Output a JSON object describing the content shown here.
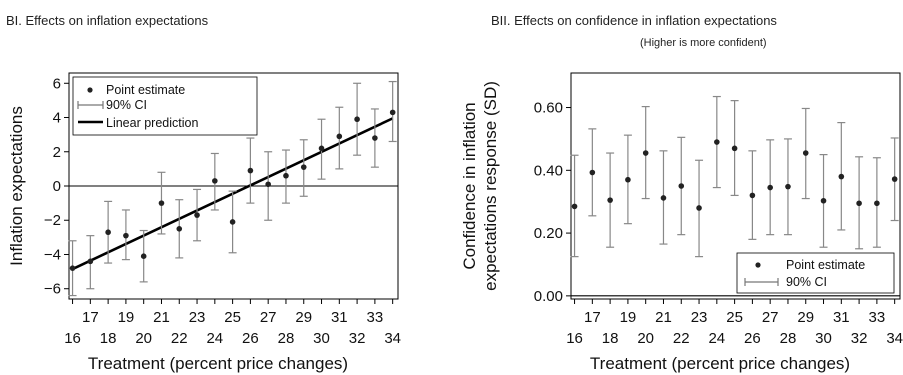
{
  "chart_data": [
    {
      "type": "scatter",
      "title": "BI. Effects on inflation expectations",
      "subtitle": "",
      "xlabel": "Treatment (percent price changes)",
      "ylabel": "Inflation expectations",
      "x": [
        16,
        17,
        18,
        19,
        20,
        21,
        22,
        23,
        24,
        25,
        26,
        27,
        28,
        29,
        30,
        31,
        32,
        33,
        34
      ],
      "xticks_bottom": [
        "16",
        "18",
        "20",
        "22",
        "24",
        "26",
        "28",
        "30",
        "32",
        "34"
      ],
      "xticks_top": [
        "17",
        "19",
        "21",
        "23",
        "25",
        "27",
        "29",
        "31",
        "33"
      ],
      "yticks": [
        6,
        4,
        2,
        0,
        -2,
        -4,
        -6
      ],
      "ytick_labels": [
        "6",
        "4",
        "2",
        "0",
        "−2",
        "−4",
        "−6"
      ],
      "ylim": [
        -6.6,
        6.6
      ],
      "xlim": [
        15.8,
        34.3
      ],
      "reference_line_y": 0,
      "series": [
        {
          "name": "Point estimate",
          "values": [
            -4.8,
            -4.4,
            -2.7,
            -2.9,
            -4.1,
            -1.0,
            -2.5,
            -1.7,
            0.3,
            -2.1,
            0.9,
            0.1,
            0.6,
            1.1,
            2.2,
            2.9,
            3.9,
            2.8,
            4.3
          ],
          "ci_low": [
            -6.4,
            -6.0,
            -4.5,
            -4.3,
            -5.6,
            -2.8,
            -4.2,
            -3.2,
            -1.4,
            -3.9,
            -1.0,
            -2.0,
            -1.0,
            -0.6,
            0.4,
            1.0,
            1.8,
            1.1,
            2.6
          ],
          "ci_high": [
            -3.2,
            -2.9,
            -0.9,
            -1.4,
            -2.6,
            0.8,
            -0.8,
            -0.2,
            1.9,
            -0.3,
            2.8,
            2.0,
            2.1,
            2.7,
            3.9,
            4.6,
            6.0,
            4.5,
            6.1
          ]
        }
      ],
      "linear_prediction": {
        "name": "Linear prediction",
        "x": [
          16,
          34
        ],
        "y": [
          -4.85,
          3.95
        ]
      },
      "legend": [
        "Point estimate",
        "90% CI",
        "Linear prediction"
      ],
      "legend_position": "top-left",
      "grid": false
    },
    {
      "type": "scatter",
      "title": "BII. Effects on confidence in inflation expectations",
      "subtitle": "(Higher is more confident)",
      "xlabel": "Treatment (percent price changes)",
      "ylabel_line1": "Confidence in inflation",
      "ylabel_line2": "expectations response (SD)",
      "x": [
        16,
        17,
        18,
        19,
        20,
        21,
        22,
        23,
        24,
        25,
        26,
        27,
        28,
        29,
        30,
        31,
        32,
        33,
        34
      ],
      "xticks_bottom": [
        "16",
        "18",
        "20",
        "22",
        "24",
        "26",
        "28",
        "30",
        "32",
        "34"
      ],
      "xticks_top": [
        "17",
        "19",
        "21",
        "23",
        "25",
        "27",
        "29",
        "31",
        "33"
      ],
      "yticks": [
        0.6,
        0.4,
        0.2,
        0.0
      ],
      "ytick_labels": [
        "0.60",
        "0.40",
        "0.20",
        "0.00"
      ],
      "ylim": [
        -0.01,
        0.71
      ],
      "xlim": [
        15.8,
        34.3
      ],
      "reference_line_y": 0,
      "series": [
        {
          "name": "Point estimate",
          "values": [
            0.285,
            0.393,
            0.305,
            0.37,
            0.455,
            0.312,
            0.35,
            0.28,
            0.49,
            0.47,
            0.32,
            0.345,
            0.348,
            0.455,
            0.303,
            0.38,
            0.295,
            0.295,
            0.372
          ],
          "ci_low": [
            0.125,
            0.255,
            0.155,
            0.23,
            0.31,
            0.165,
            0.195,
            0.125,
            0.345,
            0.32,
            0.18,
            0.195,
            0.195,
            0.31,
            0.155,
            0.21,
            0.15,
            0.155,
            0.24
          ],
          "ci_high": [
            0.448,
            0.532,
            0.455,
            0.512,
            0.603,
            0.462,
            0.505,
            0.432,
            0.635,
            0.622,
            0.462,
            0.497,
            0.5,
            0.597,
            0.45,
            0.552,
            0.443,
            0.44,
            0.503
          ]
        }
      ],
      "legend": [
        "Point estimate",
        "90% CI"
      ],
      "legend_position": "bottom-right",
      "grid": false
    }
  ]
}
